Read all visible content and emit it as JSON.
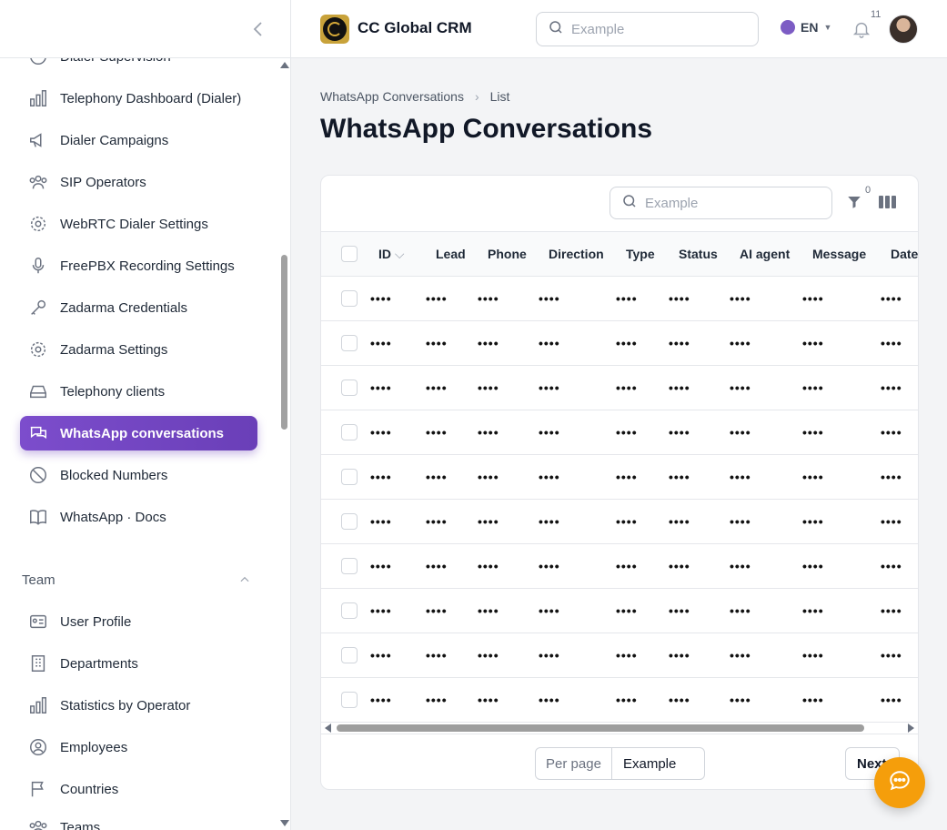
{
  "app": {
    "title": "CC Global CRM"
  },
  "header": {
    "search_placeholder": "Example",
    "language": "EN",
    "notifications_count": "11"
  },
  "sidebar": {
    "items": [
      {
        "label": "Dialer Supervision",
        "icon": "gauge-icon"
      },
      {
        "label": "Telephony Dashboard (Dialer)",
        "icon": "bar-chart-icon"
      },
      {
        "label": "Dialer Campaigns",
        "icon": "megaphone-icon"
      },
      {
        "label": "SIP Operators",
        "icon": "users-icon"
      },
      {
        "label": "WebRTC Dialer Settings",
        "icon": "gear-icon"
      },
      {
        "label": "FreePBX Recording Settings",
        "icon": "microphone-icon"
      },
      {
        "label": "Zadarma Credentials",
        "icon": "key-icon"
      },
      {
        "label": "Zadarma Settings",
        "icon": "gear-icon"
      },
      {
        "label": "Telephony clients",
        "icon": "tray-icon"
      },
      {
        "label": "WhatsApp conversations",
        "icon": "chat-icon",
        "active": true
      },
      {
        "label": "Blocked Numbers",
        "icon": "block-icon"
      },
      {
        "label": "WhatsApp · Docs",
        "icon": "book-icon"
      }
    ],
    "team_section": "Team",
    "team_items": [
      {
        "label": "User Profile",
        "icon": "id-card-icon"
      },
      {
        "label": "Departments",
        "icon": "building-icon"
      },
      {
        "label": "Statistics by Operator",
        "icon": "bar-chart-icon"
      },
      {
        "label": "Employees",
        "icon": "user-circle-icon"
      },
      {
        "label": "Countries",
        "icon": "flag-icon"
      },
      {
        "label": "Teams",
        "icon": "users-icon"
      }
    ]
  },
  "breadcrumb": {
    "parent": "WhatsApp Conversations",
    "current": "List"
  },
  "page_title": "WhatsApp Conversations",
  "table": {
    "search_placeholder": "Example",
    "filter_count": "0",
    "columns": [
      "ID",
      "Lead",
      "Phone",
      "Direction",
      "Type",
      "Status",
      "AI agent",
      "Message",
      "Date"
    ],
    "masked_value": "••••",
    "row_count": 10
  },
  "pagination": {
    "per_page_label": "Per page",
    "per_page_value": "Example",
    "next_label": "Next"
  },
  "colors": {
    "accent": "#6a3fb8",
    "fab": "#f59e0b"
  }
}
